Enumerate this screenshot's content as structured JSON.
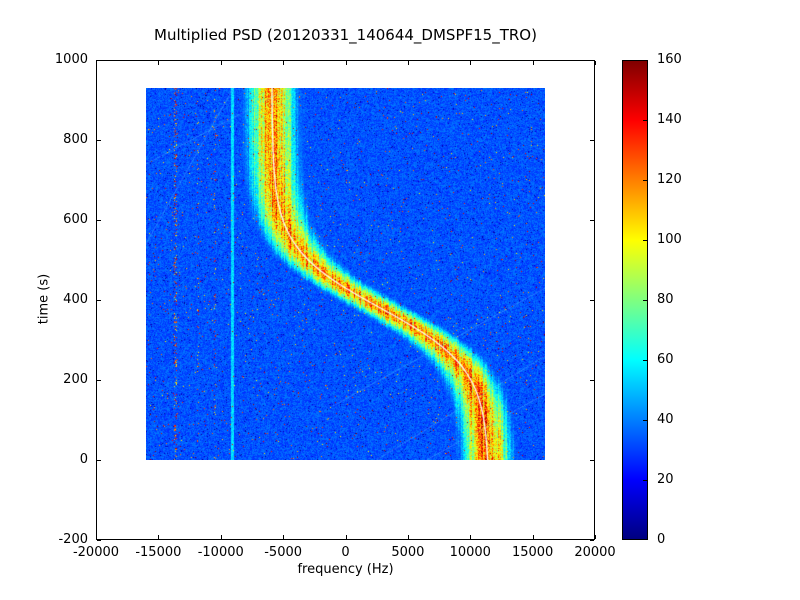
{
  "chart_data": {
    "type": "heatmap",
    "title": "Multiplied PSD (20120331_140644_DMSPF15_TRO)",
    "xlabel": "frequency (Hz)",
    "ylabel": "time (s)",
    "xlim": [
      -20000,
      20000
    ],
    "ylim": [
      -200,
      1000
    ],
    "xticks": [
      -20000,
      -15000,
      -10000,
      -5000,
      0,
      5000,
      10000,
      15000,
      20000
    ],
    "yticks": [
      -200,
      0,
      200,
      400,
      600,
      800,
      1000
    ],
    "grid": false,
    "image_extent": {
      "f_min_hz": -16000,
      "f_max_hz": 16000,
      "t_min_s": 0,
      "t_max_s": 930
    },
    "colormap": "jet",
    "colormap_stops": [
      "#000080",
      "#0000ff",
      "#00ffff",
      "#ffff00",
      "#ff0000",
      "#800000"
    ],
    "colormap_stop_positions": [
      0,
      12.5,
      37.5,
      62.5,
      87.5,
      100
    ],
    "colorbar": {
      "min": 0,
      "max": 160,
      "ticks": [
        0,
        20,
        40,
        60,
        80,
        100,
        120,
        140,
        160
      ],
      "position": "right"
    },
    "noise_floor": {
      "mean_value": 33,
      "min_value": 26,
      "max_value": 40,
      "red_speckle_density": 0.01,
      "dark_speckle_density": 0.02
    },
    "doppler_track": {
      "model": "f(t) = f_offset_hz - amplitude_hz * tanh((t - t_mid_s)/tau_s)",
      "f_offset_hz": 2800,
      "amplitude_hz": 8700,
      "t_mid_s": 380,
      "tau_s": 150,
      "peak_value": 112,
      "sigma_hz": 1450,
      "overlay_line_color": "#ffffff",
      "points": [
        {
          "t_s": 0,
          "f_hz": 11393
        },
        {
          "t_s": 100,
          "f_hz": 11094
        },
        {
          "t_s": 200,
          "f_hz": 10053
        },
        {
          "t_s": 300,
          "f_hz": 7048
        },
        {
          "t_s": 380,
          "f_hz": 2800
        },
        {
          "t_s": 430,
          "f_hz": 0
        },
        {
          "t_s": 500,
          "f_hz": -2977
        },
        {
          "t_s": 600,
          "f_hz": -5025
        },
        {
          "t_s": 700,
          "f_hz": -5660
        },
        {
          "t_s": 800,
          "f_hz": -5836
        },
        {
          "t_s": 930,
          "f_hz": -5889
        }
      ]
    },
    "interference_columns": [
      {
        "f_hz": -13650,
        "kind": "speckle",
        "width_hz": 260,
        "density": 0.18
      },
      {
        "f_hz": -11800,
        "kind": "speckle",
        "width_hz": 180,
        "density": 0.06
      },
      {
        "f_hz": -10450,
        "kind": "speckle",
        "width_hz": 200,
        "density": 0.1
      },
      {
        "f_hz": -9100,
        "kind": "bright-line",
        "width_hz": 240,
        "value": 55
      }
    ],
    "diagonal_artifacts": [
      {
        "f1_hz": 2500,
        "t1_s": 0,
        "f2_hz": 16000,
        "t2_s": 260
      },
      {
        "f1_hz": 6500,
        "t1_s": 0,
        "f2_hz": 16000,
        "t2_s": 165
      },
      {
        "f1_hz": -1000,
        "t1_s": 135,
        "f2_hz": 16000,
        "t2_s": 430
      },
      {
        "f1_hz": -16000,
        "t1_s": 740,
        "f2_hz": -4500,
        "t2_s": 930
      },
      {
        "f1_hz": -16000,
        "t1_s": 540,
        "f2_hz": -9000,
        "t2_s": 930
      }
    ]
  }
}
